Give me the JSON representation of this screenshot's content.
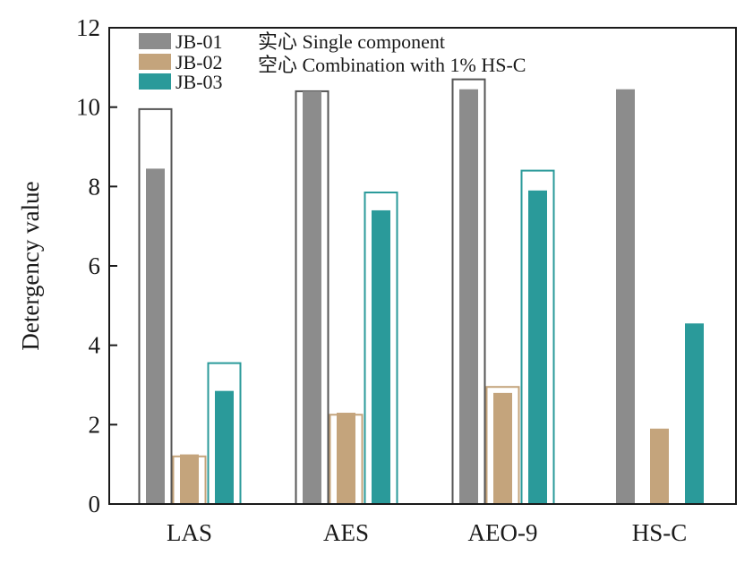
{
  "chart_data": {
    "type": "bar",
    "title": "",
    "xlabel": "",
    "ylabel": "Detergency value",
    "ylim": [
      0,
      12
    ],
    "yticks": [
      0,
      2,
      4,
      6,
      8,
      10,
      12
    ],
    "grid": false,
    "legend_position": "top-left",
    "categories": [
      "LAS",
      "AES",
      "AEO-9",
      "HS-C"
    ],
    "series": [
      {
        "name": "JB-01",
        "color": "#8c8c8c",
        "outline_color": "#555555",
        "single_component": [
          8.45,
          10.4,
          10.45,
          10.45
        ],
        "combination_1pct_HSC": [
          9.95,
          10.4,
          10.7,
          null
        ]
      },
      {
        "name": "JB-02",
        "color": "#c4a47c",
        "outline_color": "#c4a47c",
        "single_component": [
          1.25,
          2.3,
          2.8,
          1.9
        ],
        "combination_1pct_HSC": [
          1.2,
          2.25,
          2.95,
          null
        ]
      },
      {
        "name": "JB-03",
        "color": "#2a9a9a",
        "outline_color": "#2a9a9a",
        "single_component": [
          2.85,
          7.4,
          7.9,
          4.55
        ],
        "combination_1pct_HSC": [
          3.55,
          7.85,
          8.4,
          null
        ]
      }
    ],
    "annotations": {
      "solid_label": "实心 Single component",
      "hollow_label": "空心 Combination with 1% HS-C"
    }
  }
}
